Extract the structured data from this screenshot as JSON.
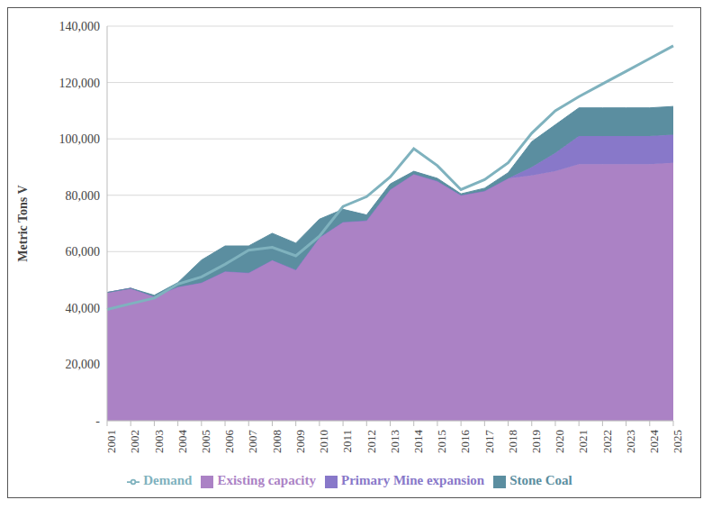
{
  "chart_data": {
    "type": "area",
    "stacked": true,
    "grid": true,
    "legend": "bottom",
    "y_label": "Metric Tons V",
    "categories": [
      "2001",
      "2002",
      "2003",
      "2004",
      "2005",
      "2006",
      "2007",
      "2008",
      "2009",
      "2010",
      "2011",
      "2012",
      "2013",
      "2014",
      "2015",
      "2016",
      "2017",
      "2018",
      "2019",
      "2020",
      "2021",
      "2022",
      "2023",
      "2024",
      "2025"
    ],
    "ylim": [
      0,
      140000
    ],
    "yticks": [
      {
        "value": 0,
        "label": "-"
      },
      {
        "value": 20000,
        "label": "20,000"
      },
      {
        "value": 40000,
        "label": "40,000"
      },
      {
        "value": 60000,
        "label": "60,000"
      },
      {
        "value": 80000,
        "label": "80,000"
      },
      {
        "value": 100000,
        "label": "100,000"
      },
      {
        "value": 120000,
        "label": "120,000"
      },
      {
        "value": 140000,
        "label": "140,000"
      }
    ],
    "series": [
      {
        "name": "Existing capacity",
        "type": "area",
        "color": "#ab82c5",
        "values": [
          45500,
          47000,
          44000,
          47500,
          49000,
          53000,
          52500,
          57000,
          53500,
          65000,
          70500,
          71000,
          82000,
          87500,
          85000,
          80000,
          81500,
          86000,
          87000,
          88500,
          91000,
          91000,
          91000,
          91000,
          91500
        ]
      },
      {
        "name": "Primary Mine expansion",
        "type": "area",
        "color": "#8878c9",
        "values": [
          0,
          0,
          0,
          0,
          0,
          0,
          0,
          0,
          0,
          0,
          0,
          0,
          0,
          0,
          0,
          0,
          0,
          0,
          3000,
          6500,
          10000,
          10000,
          10000,
          10000,
          10000
        ]
      },
      {
        "name": "Stone Coal",
        "type": "area",
        "color": "#5b8ea0",
        "values": [
          0,
          0,
          500,
          1500,
          8000,
          9000,
          9500,
          9500,
          9500,
          6500,
          4500,
          2000,
          2000,
          1000,
          1000,
          500,
          1000,
          2000,
          9000,
          10000,
          10000,
          10000,
          10000,
          10000,
          10000
        ]
      },
      {
        "name": "Demand",
        "type": "line",
        "color": "#7fb2be",
        "values": [
          39500,
          41500,
          43500,
          48500,
          51000,
          55500,
          60500,
          61500,
          58500,
          65500,
          76000,
          79500,
          86500,
          96500,
          90500,
          82000,
          85500,
          91500,
          102000,
          110000,
          115000,
          119500,
          124000,
          128500,
          133000
        ]
      }
    ]
  }
}
